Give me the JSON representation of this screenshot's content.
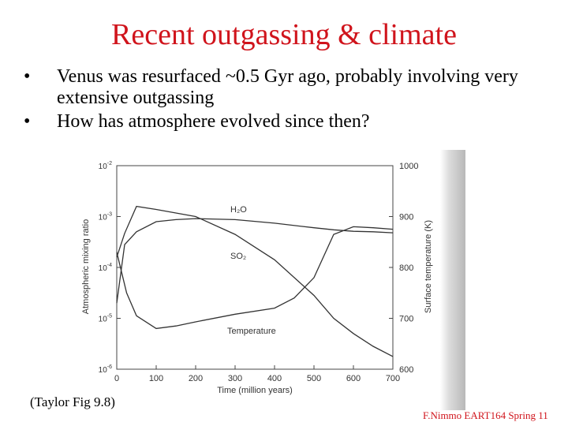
{
  "slide": {
    "title": "Recent outgassing & climate",
    "bullets": [
      "Venus was resurfaced ~0.5 Gyr ago, probably involving very extensive outgassing",
      "How has atmosphere evolved since then?"
    ],
    "bullet_symbol": "•",
    "caption": "(Taylor Fig 9.8)",
    "credit": "F.Nimmo EART164 Spring 11",
    "title_color": "#d0141c",
    "text_color": "#000000"
  },
  "chart_data": {
    "type": "line",
    "xlabel": "Time (million years)",
    "ylabel_left": "Atmospheric mixing ratio",
    "ylabel_right": "Surface temperature (K)",
    "xlim": [
      0,
      700
    ],
    "x_ticks": [
      0,
      100,
      200,
      300,
      400,
      500,
      600,
      700
    ],
    "y_left_scale": "log",
    "y_left_ticks": [
      {
        "value": -6,
        "mantissa": "10",
        "exp": "-6"
      },
      {
        "value": -5,
        "mantissa": "10",
        "exp": "-5"
      },
      {
        "value": -4,
        "mantissa": "10",
        "exp": "-4"
      },
      {
        "value": -3,
        "mantissa": "10",
        "exp": "-3"
      },
      {
        "value": -2,
        "mantissa": "10",
        "exp": "-2"
      }
    ],
    "y_right_ticks": [
      600,
      700,
      800,
      900,
      1000
    ],
    "ylim_right": [
      600,
      1000
    ],
    "series": [
      {
        "name": "H₂O",
        "axis": "left",
        "x": [
          0,
          20,
          50,
          100,
          150,
          200,
          300,
          400,
          500,
          550,
          600,
          650,
          700
        ],
        "y": [
          -4.7,
          -3.55,
          -3.3,
          -3.1,
          -3.06,
          -3.04,
          -3.06,
          -3.13,
          -3.22,
          -3.26,
          -3.29,
          -3.3,
          -3.32
        ]
      },
      {
        "name": "SO₂",
        "axis": "left",
        "x": [
          0,
          20,
          50,
          100,
          150,
          200,
          300,
          400,
          500,
          550,
          600,
          650,
          700
        ],
        "y": [
          -3.8,
          -3.33,
          -2.8,
          -2.86,
          -2.93,
          -3.0,
          -3.35,
          -3.85,
          -4.55,
          -5.0,
          -5.3,
          -5.55,
          -5.75
        ]
      },
      {
        "name": "Temperature",
        "axis": "right",
        "x": [
          0,
          25,
          50,
          100,
          150,
          200,
          300,
          400,
          450,
          500,
          550,
          600,
          650,
          700
        ],
        "y": [
          830,
          750,
          705,
          680,
          685,
          693,
          708,
          720,
          740,
          780,
          865,
          880,
          878,
          875
        ]
      }
    ]
  }
}
